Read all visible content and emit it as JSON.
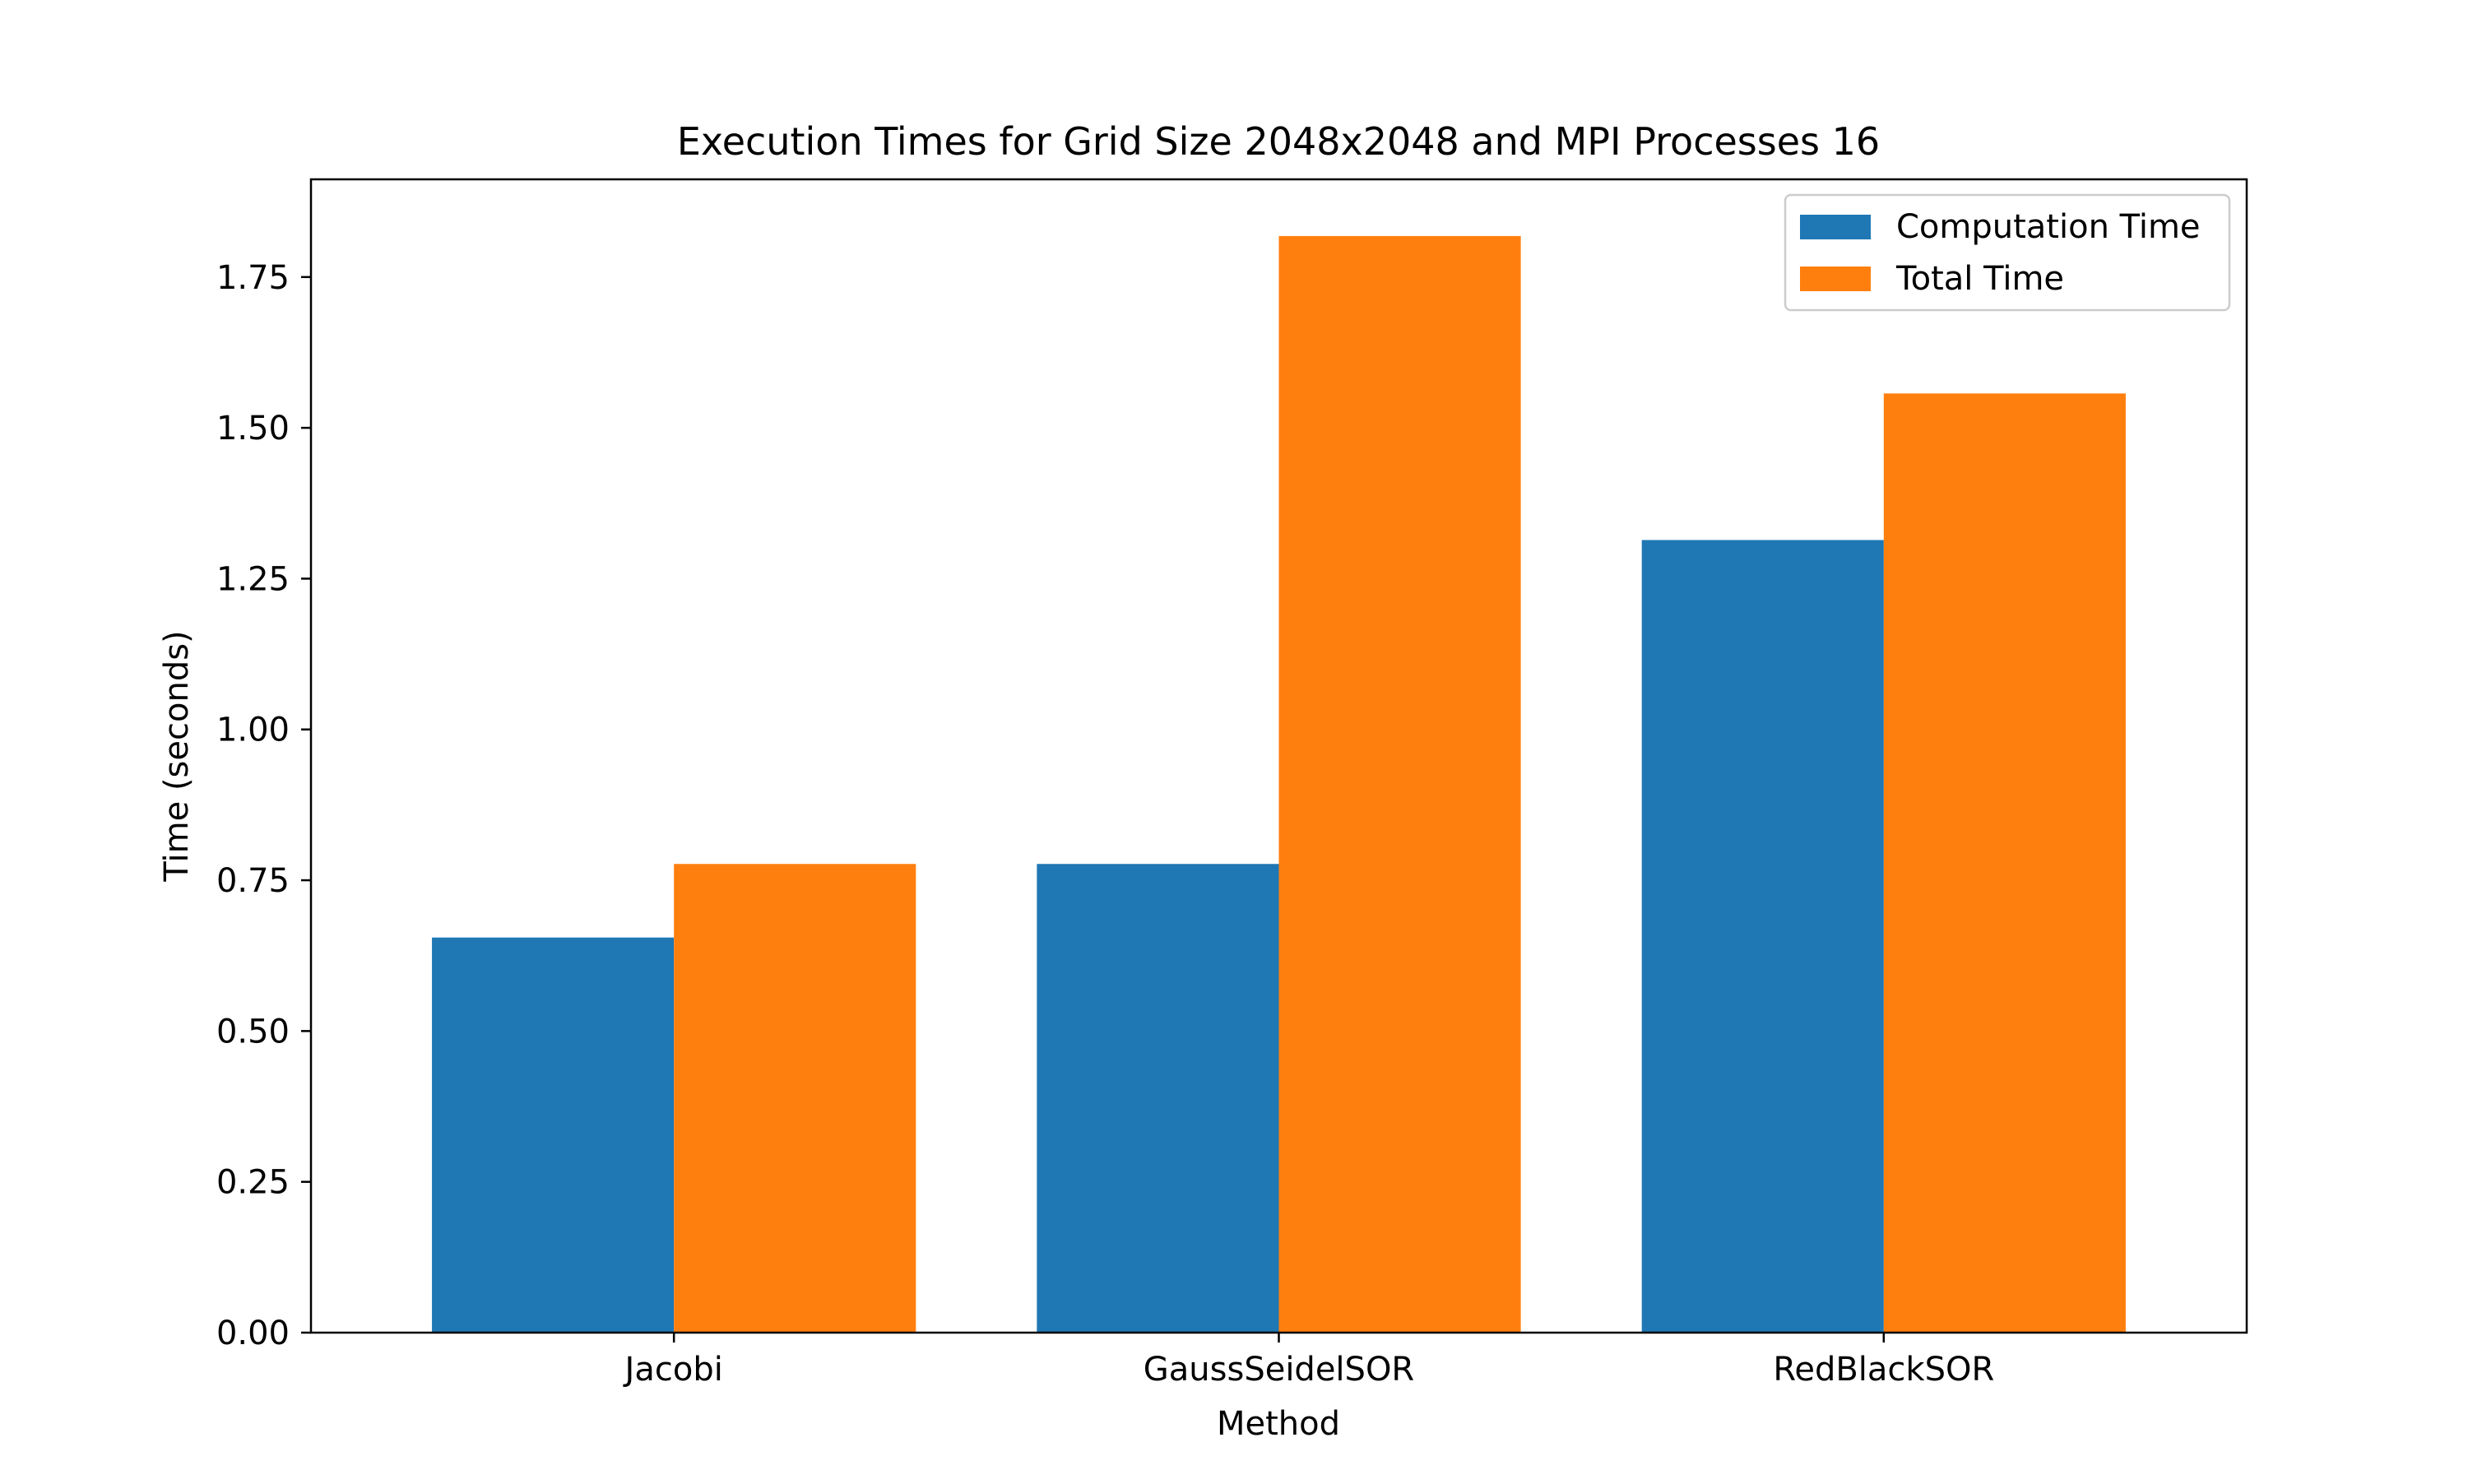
{
  "chart_data": {
    "type": "bar",
    "title": "Execution Times for Grid Size 2048x2048 and MPI Processes 16",
    "xlabel": "Method",
    "ylabel": "Time (seconds)",
    "categories": [
      "Jacobi",
      "GaussSeidelSOR",
      "RedBlackSOR"
    ],
    "series": [
      {
        "name": "Computation Time",
        "color": "#1f77b4",
        "values": [
          0.655,
          0.777,
          1.314
        ]
      },
      {
        "name": "Total Time",
        "color": "#ff7f0e",
        "values": [
          0.777,
          1.818,
          1.557
        ]
      }
    ],
    "ylim": [
      0,
      1.912
    ],
    "yticks": [
      "0.00",
      "0.25",
      "0.50",
      "0.75",
      "1.00",
      "1.25",
      "1.50",
      "1.75"
    ],
    "grid": false,
    "legend_position": "top-right"
  }
}
